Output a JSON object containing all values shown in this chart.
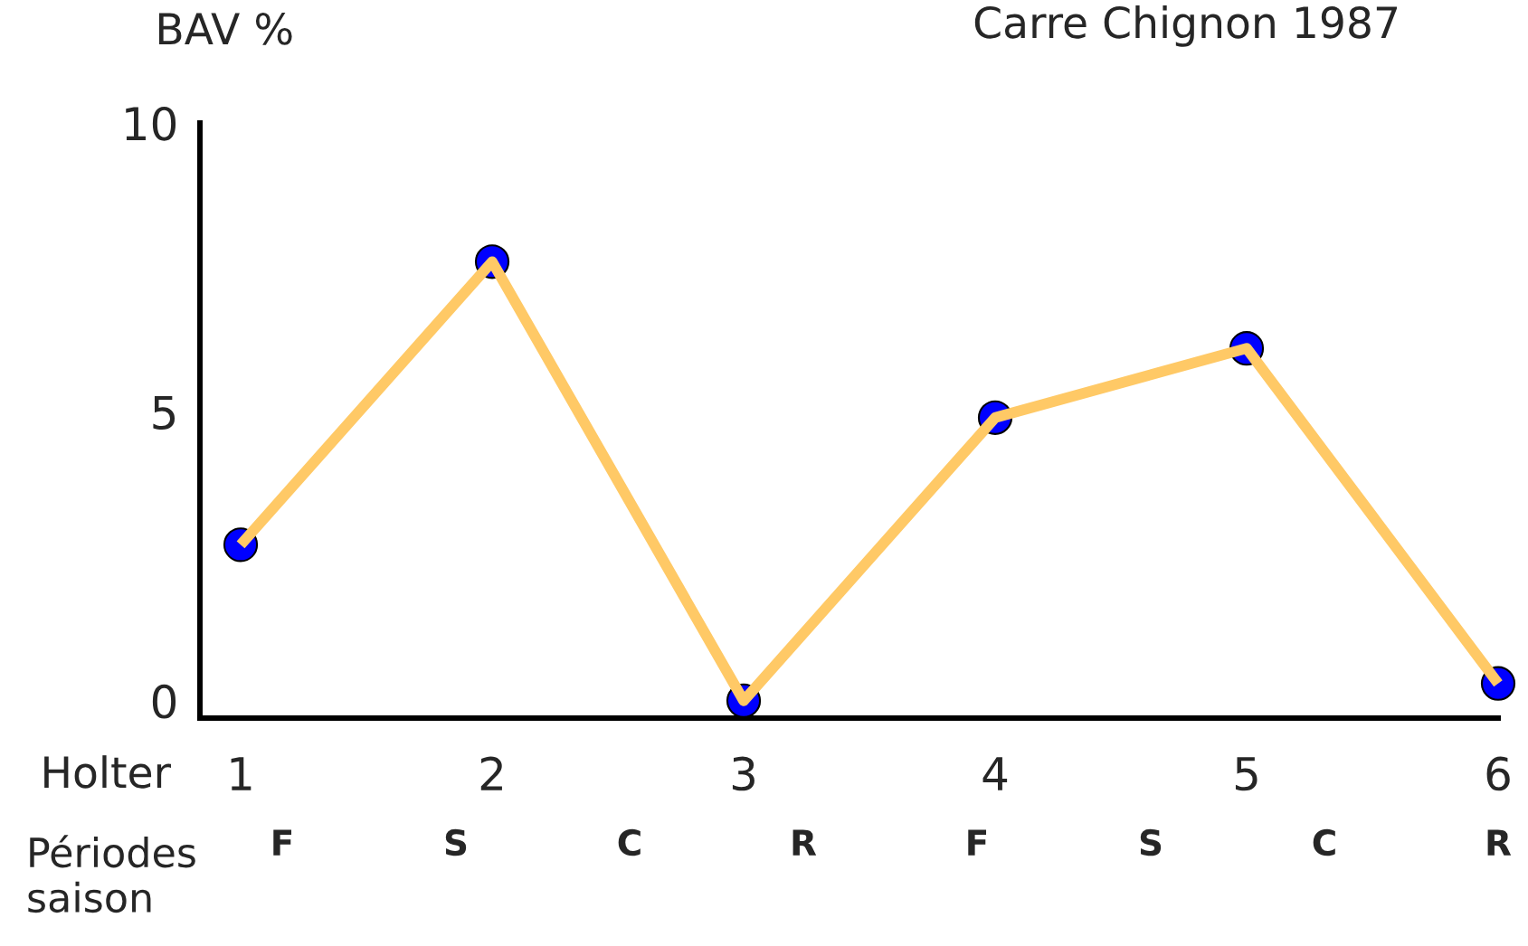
{
  "chart_data": {
    "type": "line",
    "title": "Carre Chignon 1987",
    "xlabel": "Holter",
    "ylabel": "BAV %",
    "x2label": "Périodes saison",
    "categories": [
      "1",
      "2",
      "3",
      "4",
      "5",
      "6"
    ],
    "series": [
      {
        "type": "scatter",
        "color": "#0000ff",
        "marker": "circle",
        "values": [
          2.7,
          7.6,
          0,
          4.9,
          6.1,
          0.3
        ]
      },
      {
        "color": "#ffc966",
        "line_style": "solid",
        "values": [
          2.7,
          7.6,
          0,
          4.9,
          6.1,
          0.3
        ]
      }
    ],
    "ylim": [
      -0.3,
      10
    ],
    "yticks": [
      0,
      5,
      10
    ],
    "annotations": [
      "F",
      "S",
      "C",
      "R",
      "F",
      "S",
      "C",
      "R"
    ],
    "grid": false
  }
}
